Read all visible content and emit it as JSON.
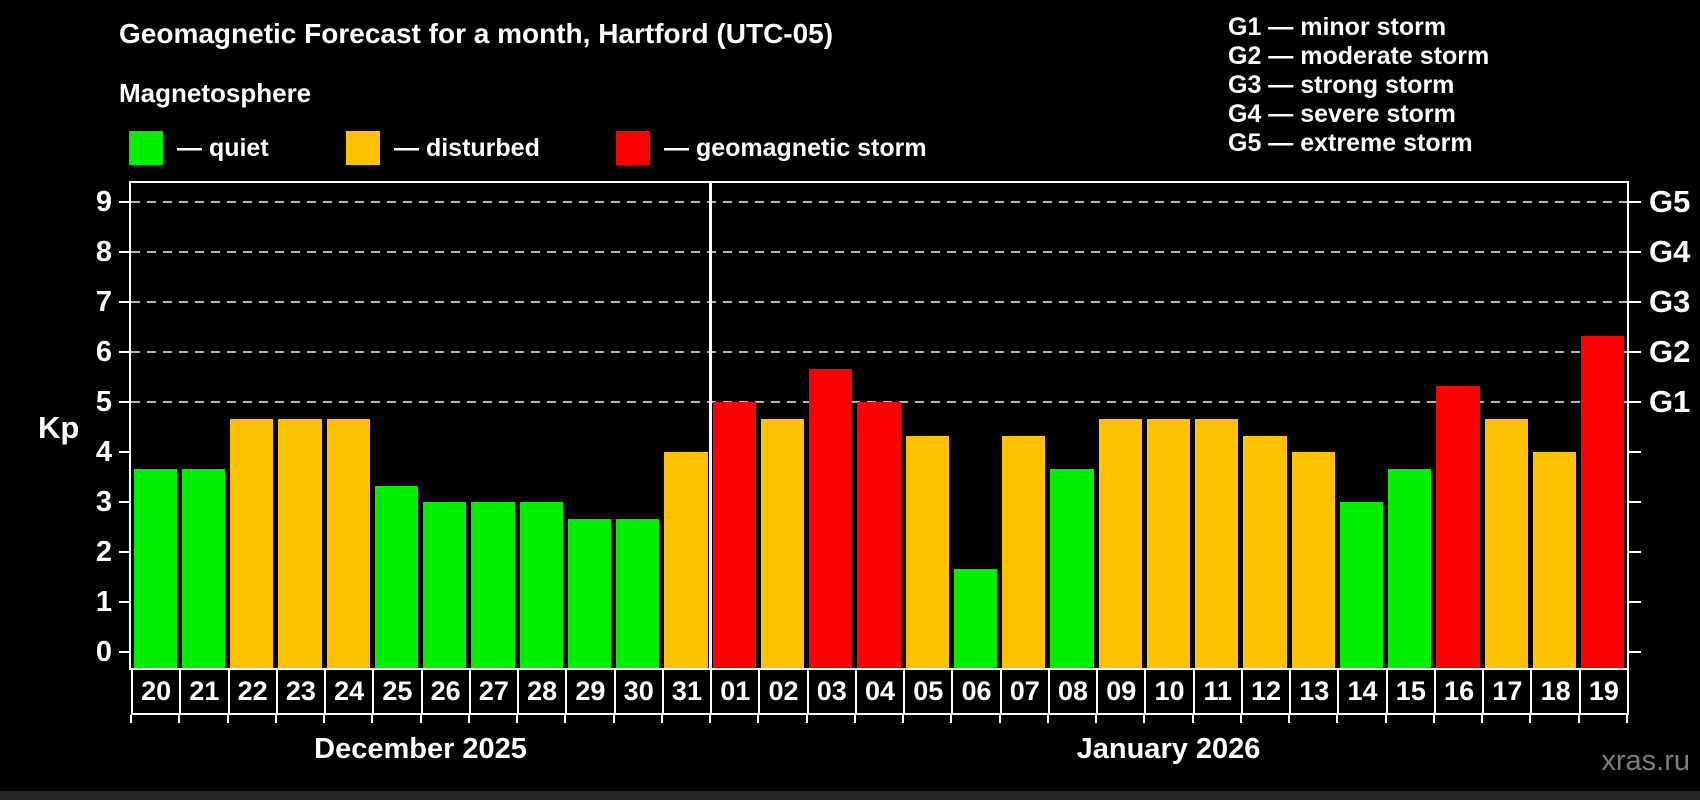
{
  "title": "Geomagnetic Forecast for a month, Hartford (UTC-05)",
  "subtitle": "Magnetosphere",
  "watermark": "xras.ru",
  "legend": {
    "items": [
      {
        "key": "quiet",
        "label": "— quiet",
        "color": "#00ee00"
      },
      {
        "key": "disturbed",
        "label": "— disturbed",
        "color": "#ffc000"
      },
      {
        "key": "storm",
        "label": "— geomagnetic storm",
        "color": "#ff0000"
      }
    ]
  },
  "g_legend": [
    "G1 — minor storm",
    "G2 — moderate storm",
    "G3 — strong storm",
    "G4 — severe storm",
    "G5 — extreme storm"
  ],
  "chart_data": {
    "type": "bar",
    "title": "Geomagnetic Forecast for a month, Hartford (UTC-05)",
    "subtitle": "Magnetosphere",
    "ylabel": "Kp",
    "ylim": [
      0,
      9
    ],
    "grid": "dashed horizontal lines at Kp 5-9",
    "kp_ticks": [
      0,
      1,
      2,
      3,
      4,
      5,
      6,
      7,
      8,
      9
    ],
    "grid_kp": [
      5,
      6,
      7,
      8,
      9
    ],
    "g_scale": [
      {
        "label": "G1",
        "kp": 5
      },
      {
        "label": "G2",
        "kp": 6
      },
      {
        "label": "G3",
        "kp": 7
      },
      {
        "label": "G4",
        "kp": 8
      },
      {
        "label": "G5",
        "kp": 9
      }
    ],
    "months": [
      {
        "label": "December 2025",
        "days": [
          {
            "day": "20",
            "kp": 3.67,
            "status": "quiet"
          },
          {
            "day": "21",
            "kp": 3.67,
            "status": "quiet"
          },
          {
            "day": "22",
            "kp": 4.67,
            "status": "disturbed"
          },
          {
            "day": "23",
            "kp": 4.67,
            "status": "disturbed"
          },
          {
            "day": "24",
            "kp": 4.67,
            "status": "disturbed"
          },
          {
            "day": "25",
            "kp": 3.33,
            "status": "quiet"
          },
          {
            "day": "26",
            "kp": 3.0,
            "status": "quiet"
          },
          {
            "day": "27",
            "kp": 3.0,
            "status": "quiet"
          },
          {
            "day": "28",
            "kp": 3.0,
            "status": "quiet"
          },
          {
            "day": "29",
            "kp": 2.67,
            "status": "quiet"
          },
          {
            "day": "30",
            "kp": 2.67,
            "status": "quiet"
          },
          {
            "day": "31",
            "kp": 4.0,
            "status": "disturbed"
          }
        ]
      },
      {
        "label": "January 2026",
        "days": [
          {
            "day": "01",
            "kp": 5.0,
            "status": "storm"
          },
          {
            "day": "02",
            "kp": 4.67,
            "status": "disturbed"
          },
          {
            "day": "03",
            "kp": 5.67,
            "status": "storm"
          },
          {
            "day": "04",
            "kp": 5.0,
            "status": "storm"
          },
          {
            "day": "05",
            "kp": 4.33,
            "status": "disturbed"
          },
          {
            "day": "06",
            "kp": 1.67,
            "status": "quiet"
          },
          {
            "day": "07",
            "kp": 4.33,
            "status": "disturbed"
          },
          {
            "day": "08",
            "kp": 3.67,
            "status": "quiet"
          },
          {
            "day": "09",
            "kp": 4.67,
            "status": "disturbed"
          },
          {
            "day": "10",
            "kp": 4.67,
            "status": "disturbed"
          },
          {
            "day": "11",
            "kp": 4.67,
            "status": "disturbed"
          },
          {
            "day": "12",
            "kp": 4.33,
            "status": "disturbed"
          },
          {
            "day": "13",
            "kp": 4.0,
            "status": "disturbed"
          },
          {
            "day": "14",
            "kp": 3.0,
            "status": "quiet"
          },
          {
            "day": "15",
            "kp": 3.67,
            "status": "quiet"
          },
          {
            "day": "16",
            "kp": 5.33,
            "status": "storm"
          },
          {
            "day": "17",
            "kp": 4.67,
            "status": "disturbed"
          },
          {
            "day": "18",
            "kp": 4.0,
            "status": "disturbed"
          },
          {
            "day": "19",
            "kp": 6.33,
            "status": "storm"
          }
        ]
      }
    ]
  }
}
